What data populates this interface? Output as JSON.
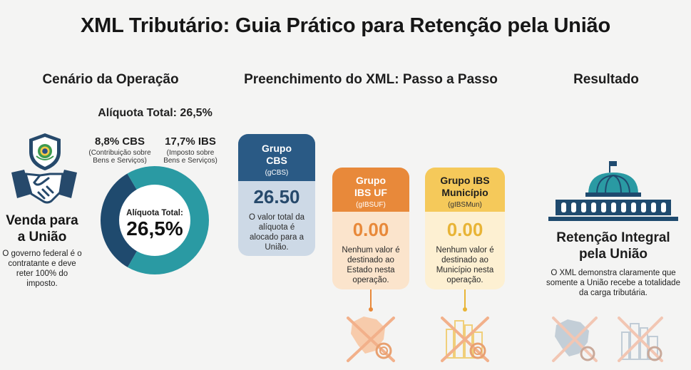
{
  "title": "XML Tributário: Guia Prático para Retenção pela União",
  "sections": {
    "cenario": "Cenário da Operação",
    "preenchimento": "Preenchimento do XML: Passo a Passo",
    "resultado": "Resultado"
  },
  "cenario": {
    "aliquota_total_label": "Alíquota Total: 26,5%",
    "cbs_pct": "8,8% CBS",
    "cbs_desc_1": "(Contribuição sobre",
    "cbs_desc_2": "Bens e Serviços)",
    "ibs_pct": "17,7% IBS",
    "ibs_desc_1": "(Imposto sobre",
    "ibs_desc_2": "Bens e Serviços)",
    "donut_center_label": "Alíquota Total:",
    "donut_center_value": "26,5%",
    "donut_share": {
      "cbs": 8.8,
      "ibs": 17.7
    },
    "venda_title_1": "Venda para",
    "venda_title_2": "a União",
    "venda_desc": "O governo federal é o contratante e deve reter 100% do imposto."
  },
  "cards": {
    "cbs": {
      "title_1": "Grupo",
      "title_2": "CBS",
      "code": "(gCBS)",
      "value": "26.50",
      "desc": "O valor total da alíquota é alocado para a União.",
      "color": "#2a5a85"
    },
    "ibs_uf": {
      "title_1": "Grupo",
      "title_2": "IBS UF",
      "code": "(gIBSUF)",
      "value": "0.00",
      "desc": "Nenhum valor é destinado ao Estado nesta operação.",
      "color": "#e8893a"
    },
    "ibs_mun": {
      "title_1": "Grupo IBS",
      "title_2": "Município",
      "code": "(gIBSMun)",
      "value": "0.00",
      "desc": "Nenhum valor é destinado ao Município nesta operação.",
      "color": "#f5c95a"
    }
  },
  "resultado": {
    "title_1": "Retenção Integral",
    "title_2": "pela União",
    "desc": "O XML demonstra claramente que somente a União recebe a totalidade da carga tributária."
  },
  "colors": {
    "navy": "#1f4a6e",
    "teal": "#2a9aa3",
    "orange": "#e8893a",
    "yellow": "#f5c95a"
  }
}
